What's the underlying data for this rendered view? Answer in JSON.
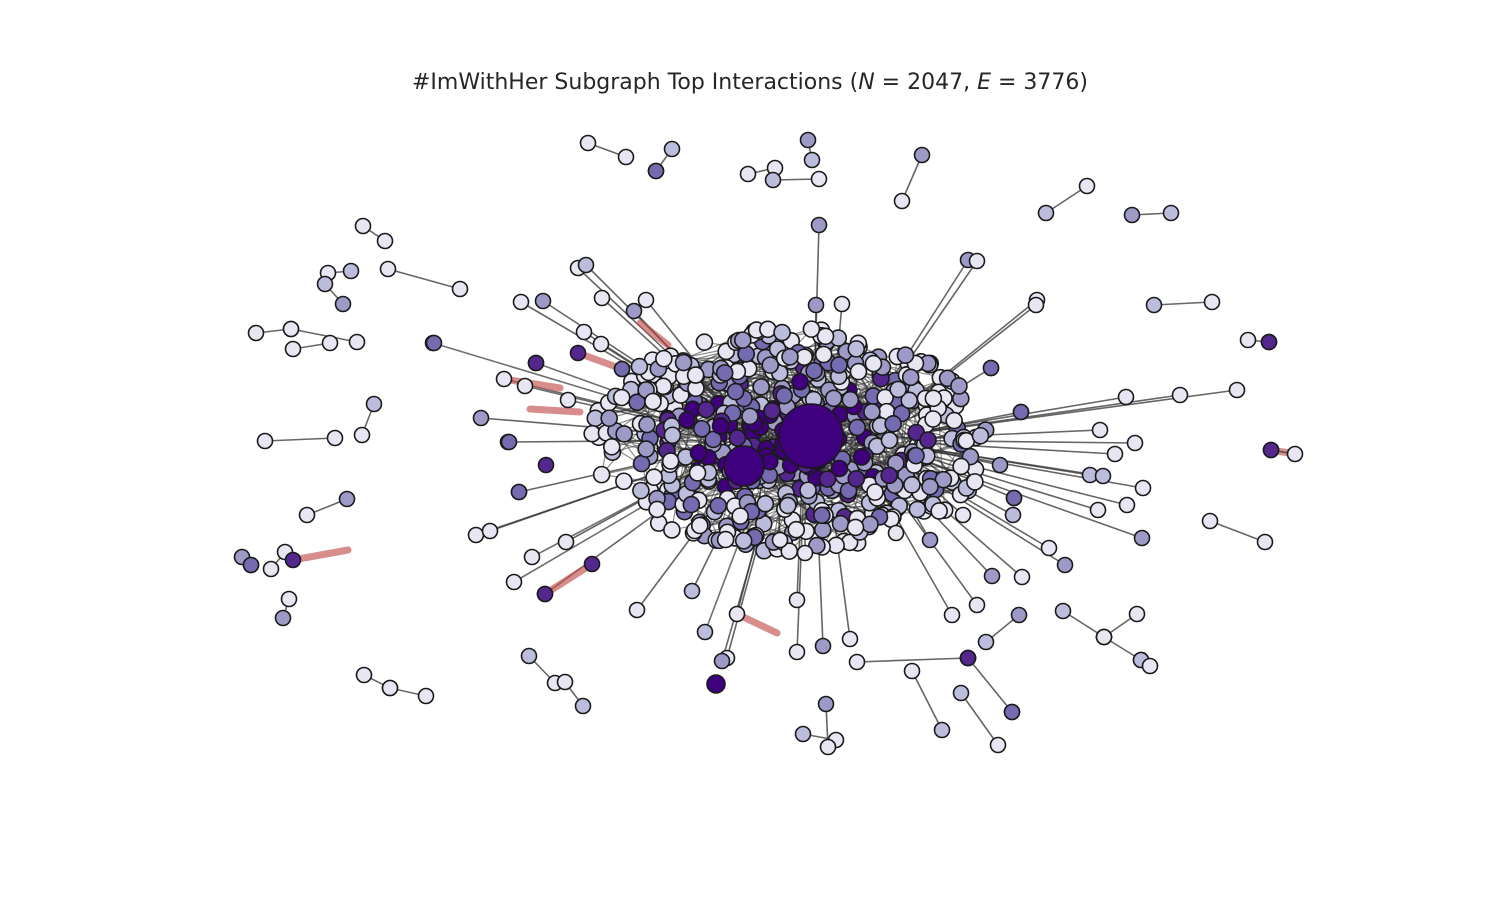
{
  "figure": {
    "title_prefix": "#ImWithHer Subgraph Top Interactions (",
    "n_symbol": "N",
    "n_eq": " = 2047, ",
    "e_symbol": "E",
    "e_eq": " = 3776)",
    "stats": {
      "N": 2047,
      "E": 3776
    }
  },
  "chart_data": {
    "type": "network",
    "title": "#ImWithHer Subgraph Top Interactions (N = 2047, E = 3776)",
    "nodes": 2047,
    "edges": 3776,
    "node_color_scale": [
      "#e8e6f2",
      "#bcbddc",
      "#9e9ac8",
      "#756bb1",
      "#54278f",
      "#3f007d"
    ],
    "edge_colors": {
      "default": "#333333",
      "highlighted": "#c0504d"
    }
  }
}
